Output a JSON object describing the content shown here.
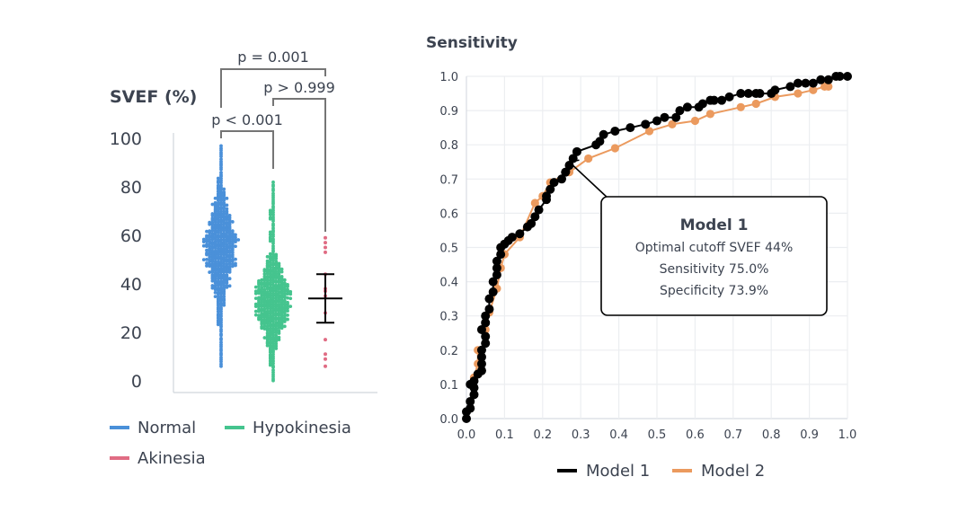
{
  "chart_data": [
    {
      "type": "scatter",
      "subtype": "beeswarm",
      "ylabel": "SVEF (%)",
      "ylim": [
        0,
        100
      ],
      "yticks": [
        "0",
        "20",
        "40",
        "60",
        "80",
        "100"
      ],
      "groups": [
        {
          "name": "Normal",
          "color": "#4a90d9",
          "min": 6,
          "max": 97,
          "center": 55
        },
        {
          "name": "Hypokinesia",
          "color": "#45c48e",
          "min": 0,
          "max": 82,
          "center": 34
        },
        {
          "name": "Akinesia",
          "color": "#e06c84",
          "min": 6,
          "max": 59,
          "values": [
            59,
            57,
            55,
            53,
            44,
            38,
            37,
            35,
            28,
            17,
            11,
            9,
            6
          ],
          "mean": 34,
          "error_low": 24,
          "error_high": 44
        }
      ],
      "comparisons": [
        {
          "label": "p < 0.001",
          "from": "Normal",
          "to": "Hypokinesia"
        },
        {
          "label": "p > 0.999",
          "from": "Hypokinesia",
          "to": "Akinesia"
        },
        {
          "label": "p = 0.001",
          "from": "Normal",
          "to": "Akinesia"
        }
      ],
      "legend": [
        "Normal",
        "Hypokinesia",
        "Akinesia"
      ],
      "legend_position": "bottom"
    },
    {
      "type": "line",
      "title": "Sensitivity",
      "xlabel": "",
      "ylabel": "Sensitivity",
      "xlim": [
        0,
        1
      ],
      "ylim": [
        0,
        1
      ],
      "xticks": [
        "0.0",
        "0.1",
        "0.2",
        "0.3",
        "0.4",
        "0.5",
        "0.6",
        "0.7",
        "0.8",
        "0.9",
        "1.0"
      ],
      "yticks": [
        "0.0",
        "0.1",
        "0.2",
        "0.3",
        "0.4",
        "0.5",
        "0.6",
        "0.7",
        "0.8",
        "0.9",
        "1.0"
      ],
      "grid": true,
      "legend_position": "bottom",
      "series": [
        {
          "name": "Model 1",
          "color": "#000000",
          "points": [
            [
              0.0,
              0.0
            ],
            [
              0.0,
              0.02
            ],
            [
              0.01,
              0.03
            ],
            [
              0.01,
              0.05
            ],
            [
              0.02,
              0.07
            ],
            [
              0.02,
              0.09
            ],
            [
              0.01,
              0.1
            ],
            [
              0.02,
              0.11
            ],
            [
              0.03,
              0.13
            ],
            [
              0.04,
              0.14
            ],
            [
              0.04,
              0.16
            ],
            [
              0.04,
              0.18
            ],
            [
              0.04,
              0.2
            ],
            [
              0.05,
              0.22
            ],
            [
              0.05,
              0.24
            ],
            [
              0.04,
              0.26
            ],
            [
              0.05,
              0.28
            ],
            [
              0.05,
              0.3
            ],
            [
              0.06,
              0.32
            ],
            [
              0.06,
              0.35
            ],
            [
              0.07,
              0.37
            ],
            [
              0.07,
              0.4
            ],
            [
              0.08,
              0.42
            ],
            [
              0.08,
              0.44
            ],
            [
              0.08,
              0.46
            ],
            [
              0.09,
              0.48
            ],
            [
              0.09,
              0.5
            ],
            [
              0.1,
              0.51
            ],
            [
              0.11,
              0.52
            ],
            [
              0.12,
              0.53
            ],
            [
              0.14,
              0.54
            ],
            [
              0.16,
              0.56
            ],
            [
              0.17,
              0.57
            ],
            [
              0.18,
              0.59
            ],
            [
              0.19,
              0.61
            ],
            [
              0.21,
              0.64
            ],
            [
              0.21,
              0.65
            ],
            [
              0.22,
              0.67
            ],
            [
              0.23,
              0.69
            ],
            [
              0.25,
              0.7
            ],
            [
              0.26,
              0.72
            ],
            [
              0.27,
              0.74
            ],
            [
              0.28,
              0.76
            ],
            [
              0.29,
              0.78
            ],
            [
              0.34,
              0.8
            ],
            [
              0.35,
              0.81
            ],
            [
              0.36,
              0.83
            ],
            [
              0.39,
              0.84
            ],
            [
              0.43,
              0.85
            ],
            [
              0.47,
              0.86
            ],
            [
              0.5,
              0.87
            ],
            [
              0.52,
              0.88
            ],
            [
              0.55,
              0.88
            ],
            [
              0.56,
              0.9
            ],
            [
              0.58,
              0.91
            ],
            [
              0.61,
              0.91
            ],
            [
              0.62,
              0.92
            ],
            [
              0.64,
              0.93
            ],
            [
              0.65,
              0.93
            ],
            [
              0.67,
              0.93
            ],
            [
              0.69,
              0.94
            ],
            [
              0.72,
              0.95
            ],
            [
              0.74,
              0.95
            ],
            [
              0.76,
              0.95
            ],
            [
              0.77,
              0.95
            ],
            [
              0.8,
              0.95
            ],
            [
              0.81,
              0.96
            ],
            [
              0.85,
              0.97
            ],
            [
              0.87,
              0.98
            ],
            [
              0.89,
              0.98
            ],
            [
              0.91,
              0.98
            ],
            [
              0.93,
              0.99
            ],
            [
              0.95,
              0.99
            ],
            [
              0.97,
              1.0
            ],
            [
              0.98,
              1.0
            ],
            [
              1.0,
              1.0
            ]
          ]
        },
        {
          "name": "Model 2",
          "color": "#eb9a5e",
          "points": [
            [
              0.02,
              0.12
            ],
            [
              0.03,
              0.16
            ],
            [
              0.03,
              0.2
            ],
            [
              0.05,
              0.22
            ],
            [
              0.05,
              0.26
            ],
            [
              0.06,
              0.31
            ],
            [
              0.08,
              0.38
            ],
            [
              0.09,
              0.44
            ],
            [
              0.1,
              0.48
            ],
            [
              0.14,
              0.53
            ],
            [
              0.18,
              0.63
            ],
            [
              0.2,
              0.65
            ],
            [
              0.22,
              0.69
            ],
            [
              0.27,
              0.72
            ],
            [
              0.32,
              0.76
            ],
            [
              0.39,
              0.79
            ],
            [
              0.48,
              0.84
            ],
            [
              0.54,
              0.86
            ],
            [
              0.6,
              0.87
            ],
            [
              0.64,
              0.89
            ],
            [
              0.72,
              0.91
            ],
            [
              0.76,
              0.92
            ],
            [
              0.81,
              0.94
            ],
            [
              0.87,
              0.95
            ],
            [
              0.91,
              0.96
            ],
            [
              0.94,
              0.97
            ],
            [
              0.95,
              0.97
            ]
          ]
        }
      ],
      "annotation": {
        "title": "Model 1",
        "lines": [
          "Optimal cutoff SVEF 44%",
          "Sensitivity 75.0%",
          "Specificity 73.9%"
        ],
        "point": [
          0.27,
          0.75
        ]
      }
    }
  ]
}
